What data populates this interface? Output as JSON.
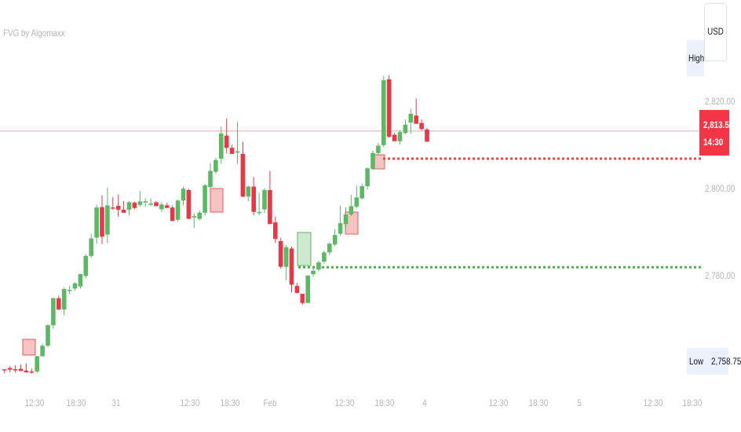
{
  "indicator_title": "FVG by Algomaxx",
  "currency": "USD",
  "high_label": "High",
  "low_label": "Low",
  "low_value": "2,758.75",
  "last_price": "2,813.54",
  "countdown": "14:30",
  "colors": {
    "up": "#5cb865",
    "down": "#e63947",
    "fvg_fill": "#f6c3c3",
    "fvg_border": "#e45b5b",
    "resistance_line": "#f44336",
    "support_line": "#4caf50",
    "price_line": "#f5a3a8"
  },
  "chart_data": {
    "type": "candlestick",
    "ylim": [
      2755,
      2830
    ],
    "y_ticks": [
      {
        "value": 2820,
        "label": "2,820.00"
      },
      {
        "value": 2800,
        "label": "2,800.00"
      },
      {
        "value": 2780,
        "label": "2,780.00"
      }
    ],
    "x_ticks": [
      "12:30",
      "18:30",
      "31",
      "12:30",
      "18:30",
      "Feb",
      "12:30",
      "18:30",
      "4",
      "12:30",
      "18:30",
      "5",
      "12:30",
      "18:30"
    ],
    "current_price": 2813.54,
    "levels": [
      {
        "kind": "resistance",
        "value": 2807.2
      },
      {
        "kind": "support",
        "value": 2782.3
      }
    ],
    "candles": [
      [
        2758.9,
        2758.0,
        2758.8,
        2758.9
      ],
      [
        2759.2,
        2758.2,
        2758.8,
        2759.6
      ],
      [
        2758.9,
        2758.1,
        2758.7,
        2759.8
      ],
      [
        2759.0,
        2758.5,
        2758.5,
        2760.0
      ],
      [
        2758.6,
        2758.1,
        2758.2,
        2760.2
      ],
      [
        2758.4,
        2757.9,
        2758.2,
        2759.1
      ],
      [
        2758.4,
        2758.0,
        2761.9,
        2762.0
      ],
      [
        2761.9,
        2761.8,
        2764.3,
        2764.8
      ],
      [
        2764.3,
        2764.0,
        2769.0,
        2769.3
      ],
      [
        2769.0,
        2768.2,
        2775.2,
        2775.3
      ],
      [
        2775.2,
        2772.5,
        2772.6,
        2775.8
      ],
      [
        2772.6,
        2771.3,
        2777.3,
        2777.7
      ],
      [
        2776.9,
        2776.1,
        2777.1,
        2778.0
      ],
      [
        2777.4,
        2776.9,
        2778.6,
        2778.9
      ],
      [
        2777.9,
        2777.4,
        2780.7,
        2780.9
      ],
      [
        2780.3,
        2779.8,
        2784.9,
        2785.3
      ],
      [
        2784.9,
        2784.5,
        2788.9,
        2789.9
      ],
      [
        2789.1,
        2787.7,
        2796.0,
        2796.6
      ],
      [
        2796.1,
        2787.6,
        2789.3,
        2798.8
      ],
      [
        2789.8,
        2787.8,
        2796.5,
        2800.6
      ],
      [
        2796.0,
        2795.5,
        2795.9,
        2798.4
      ],
      [
        2796.4,
        2793.9,
        2795.5,
        2799.0
      ],
      [
        2795.5,
        2794.9,
        2794.8,
        2797.5
      ],
      [
        2795.5,
        2794.2,
        2797.2,
        2797.5
      ],
      [
        2797.1,
        2795.6,
        2795.9,
        2797.3
      ],
      [
        2796.6,
        2796.2,
        2797.4,
        2799.8
      ],
      [
        2797.4,
        2796.2,
        2797.4,
        2798.1
      ],
      [
        2796.9,
        2796.4,
        2796.9,
        2798.1
      ],
      [
        2797.2,
        2796.5,
        2796.3,
        2797.5
      ],
      [
        2795.6,
        2794.9,
        2796.7,
        2797.2
      ],
      [
        2796.5,
        2796.2,
        2795.9,
        2797.1
      ],
      [
        2796.0,
        2794.9,
        2792.9,
        2796.5
      ],
      [
        2793.2,
        2792.7,
        2797.6,
        2797.8
      ],
      [
        2797.6,
        2796.5,
        2800.3,
        2800.8
      ],
      [
        2800.0,
        2793.6,
        2793.4,
        2800.3
      ],
      [
        2793.7,
        2791.3,
        2794.0,
        2794.7
      ],
      [
        2793.4,
        2793.0,
        2794.8,
        2795.4
      ],
      [
        2794.8,
        2794.1,
        2801.1,
        2801.4
      ],
      [
        2800.7,
        2800.5,
        2804.4,
        2806.2
      ],
      [
        2804.2,
        2803.7,
        2806.9,
        2807.4
      ],
      [
        2807.2,
        2806.0,
        2813.0,
        2814.6
      ],
      [
        2812.5,
        2808.4,
        2809.7,
        2816.4
      ],
      [
        2809.7,
        2808.3,
        2808.3,
        2810.4
      ],
      [
        2808.6,
        2806.0,
        2808.9,
        2815.6
      ],
      [
        2808.3,
        2798.3,
        2798.5,
        2811.1
      ],
      [
        2798.5,
        2797.4,
        2800.8,
        2801.0
      ],
      [
        2800.8,
        2794.2,
        2795.0,
        2803.0
      ],
      [
        2795.0,
        2794.2,
        2795.0,
        2799.4
      ],
      [
        2795.6,
        2794.7,
        2800.0,
        2800.4
      ],
      [
        2800.0,
        2792.3,
        2792.2,
        2804.4
      ],
      [
        2792.6,
        2787.9,
        2788.8,
        2794.0
      ],
      [
        2788.3,
        2782.0,
        2782.4,
        2789.0
      ],
      [
        2782.4,
        2779.3,
        2786.9,
        2787.4
      ],
      [
        2786.6,
        2776.5,
        2778.3,
        2787.0
      ],
      [
        2778.0,
        2776.3,
        2776.4,
        2778.7
      ],
      [
        2776.2,
        2773.7,
        2774.1,
        2776.1
      ],
      [
        2774.1,
        2774.4,
        2780.4,
        2780.3
      ],
      [
        2780.7,
        2780.1,
        2781.5,
        2782.0
      ],
      [
        2781.8,
        2781.3,
        2783.4,
        2783.8
      ],
      [
        2783.6,
        2783.1,
        2785.7,
        2786.1
      ],
      [
        2785.7,
        2785.1,
        2787.7,
        2788.0
      ],
      [
        2787.5,
        2787.2,
        2789.7,
        2791.1
      ],
      [
        2790.0,
        2789.5,
        2792.4,
        2796.5
      ],
      [
        2792.2,
        2791.4,
        2794.4,
        2796.0
      ],
      [
        2794.4,
        2794.0,
        2796.3,
        2798.9
      ],
      [
        2796.2,
        2795.8,
        2798.3,
        2801.0
      ],
      [
        2798.1,
        2797.9,
        2800.9,
        2801.5
      ],
      [
        2800.9,
        2800.1,
        2805.0,
        2805.2
      ],
      [
        2804.9,
        2804.6,
        2808.5,
        2809.0
      ],
      [
        2808.5,
        2808.0,
        2810.2,
        2810.8
      ],
      [
        2810.3,
        2809.8,
        2825.2,
        2826.2
      ],
      [
        2825.4,
        2812.0,
        2812.2,
        2826.4
      ],
      [
        2812.7,
        2812.2,
        2811.2,
        2813.1
      ],
      [
        2811.2,
        2810.5,
        2813.3,
        2813.7
      ],
      [
        2813.1,
        2812.8,
        2815.0,
        2816.2
      ],
      [
        2815.5,
        2812.9,
        2817.5,
        2818.6
      ],
      [
        2817.1,
        2815.5,
        2815.2,
        2821.0
      ],
      [
        2815.4,
        2813.7,
        2814.0,
        2816.2
      ],
      [
        2813.9,
        2813.5,
        2811.1,
        2814.3
      ]
    ]
  }
}
